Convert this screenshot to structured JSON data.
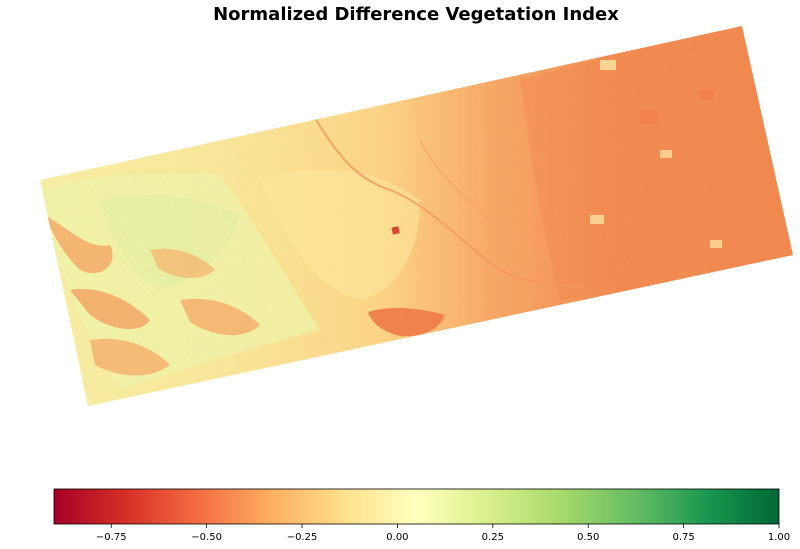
{
  "title": "Normalized Difference Vegetation Index",
  "colorbar": {
    "colormap": "RdYlGn",
    "min": -0.9,
    "max": 1.0,
    "ticks": [
      -0.75,
      -0.5,
      -0.25,
      0.0,
      0.25,
      0.5,
      0.75,
      1.0
    ],
    "tick_labels": [
      "−0.75",
      "−0.50",
      "−0.25",
      "0.00",
      "0.25",
      "0.50",
      "0.75",
      "1.00"
    ],
    "colors": [
      "#a50026",
      "#d73027",
      "#f46d43",
      "#fdae61",
      "#fee08b",
      "#ffffbf",
      "#d9ef8b",
      "#a6d96a",
      "#66bd63",
      "#1a9850",
      "#006837"
    ]
  },
  "image": {
    "description_free": true,
    "palette": {
      "urban": "#f2894f",
      "urban_light": "#f6a866",
      "transition": "#fbcd82",
      "hills": "#fbe69a",
      "vegetation_pale": "#f3f3ac",
      "vegetation_green": "#dcef9e",
      "shadow_orange": "#f59a5a",
      "hot_spot": "#e0573a"
    }
  }
}
